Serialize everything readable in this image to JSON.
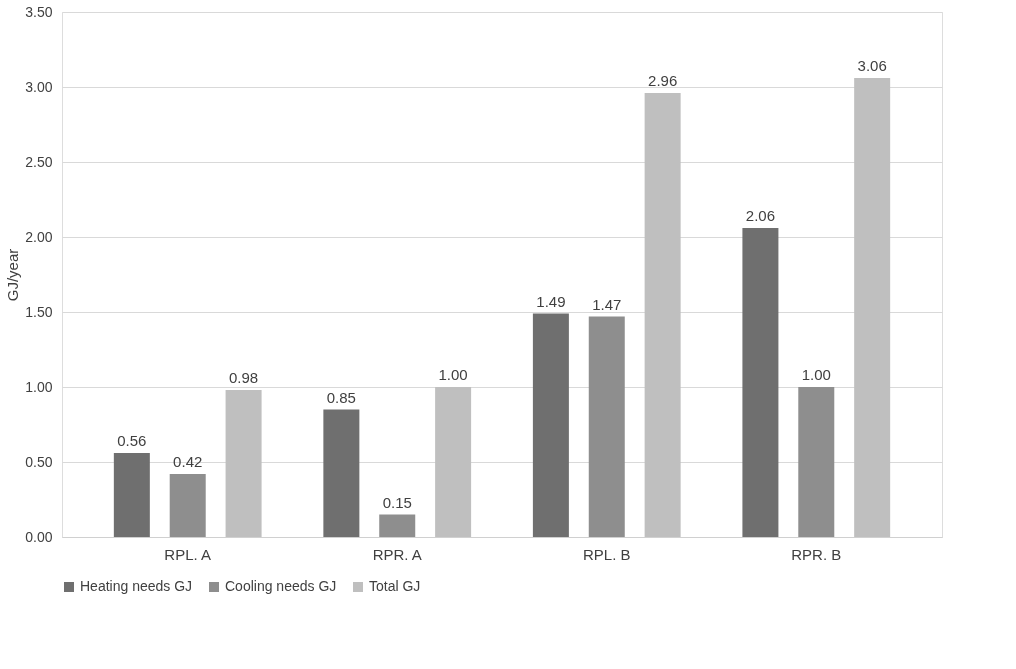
{
  "chart_data": {
    "type": "bar",
    "ylabel": "GJ/year",
    "categories": [
      "RPL. A",
      "RPR. A",
      "RPL. B",
      "RPR. B"
    ],
    "series": [
      {
        "name": "Heating needs GJ",
        "color": "#6f6f6f",
        "values": [
          0.56,
          0.85,
          1.49,
          2.06
        ],
        "value_labels": [
          "0.56",
          "0.85",
          "1.49",
          "2.06"
        ]
      },
      {
        "name": "Cooling needs GJ",
        "color": "#8e8e8e",
        "values": [
          0.42,
          0.15,
          1.47,
          1.0
        ],
        "value_labels": [
          "0.42",
          "0.15",
          "1.47",
          "1.00"
        ]
      },
      {
        "name": "Total GJ",
        "color": "#bfbfbf",
        "values": [
          0.98,
          1.0,
          2.96,
          3.06
        ],
        "value_labels": [
          "0.98",
          "1.00",
          "2.96",
          "3.06"
        ]
      }
    ],
    "ylim": [
      0,
      3.5
    ],
    "yticks": [
      {
        "value": 0,
        "label": "0.00"
      },
      {
        "value": 0.5,
        "label": "0.50"
      },
      {
        "value": 1,
        "label": "1.00"
      },
      {
        "value": 1.5,
        "label": "1.50"
      },
      {
        "value": 2,
        "label": "2.00"
      },
      {
        "value": 2.5,
        "label": "2.50"
      },
      {
        "value": 3,
        "label": "3.00"
      },
      {
        "value": 3.5,
        "label": "3.50"
      }
    ],
    "grid": "y",
    "legend": "bottom"
  }
}
